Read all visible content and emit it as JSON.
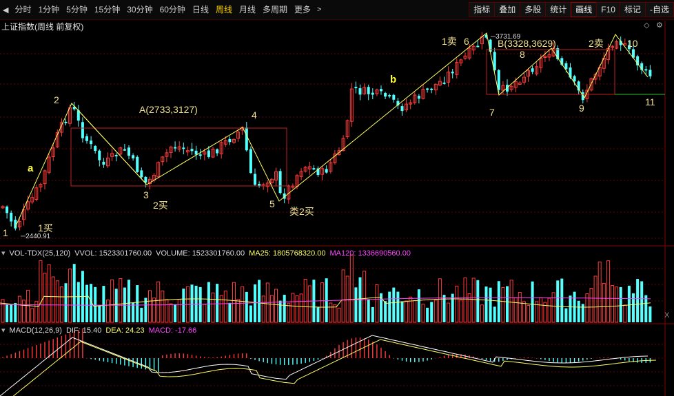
{
  "toolbar": {
    "menu_icon": "menu-arrow-icon",
    "periods": [
      "分时",
      "1分钟",
      "5分钟",
      "15分钟",
      "30分钟",
      "60分钟",
      "日线",
      "周线",
      "月线",
      "多周期",
      "更多"
    ],
    "active_period": "周线",
    "right_buttons": [
      "指标",
      "叠加",
      "多股",
      "统计",
      "画线",
      "F10",
      "标记",
      "-自选"
    ],
    "active_button": "画线"
  },
  "chart_title": "上证指数(周线 前复权)",
  "price_panel": {
    "low_label": "2440.91",
    "high_label": "3731.69",
    "annotations": [
      "1",
      "2",
      "3",
      "4",
      "5",
      "6",
      "7",
      "8",
      "9",
      "10",
      "11",
      "a",
      "b",
      "1买",
      "2买",
      "类2买",
      "1卖",
      "2卖",
      "A(2733,3127)",
      "B(3328,3629)"
    ],
    "colors": {
      "up": "#ff3b3b",
      "down": "#54ffff",
      "box": "#c02020",
      "line": "#ffff66",
      "text": "#f0f0a0"
    }
  },
  "volume_panel": {
    "name": "VOL-TDX(25,120)",
    "vvol": "VVOL: 1523301760.00",
    "volume": "VOLUME: 1523301760.00",
    "ma25": "MA25: 1805768320.00",
    "ma120": "MA120: 1336690560.00",
    "x_icon": "X"
  },
  "macd_panel": {
    "name": "MACD(12,26,9)",
    "dif": "DIF: 15.40",
    "dea": "DEA: 24.23",
    "macd": "MACD: -17.66"
  }
}
